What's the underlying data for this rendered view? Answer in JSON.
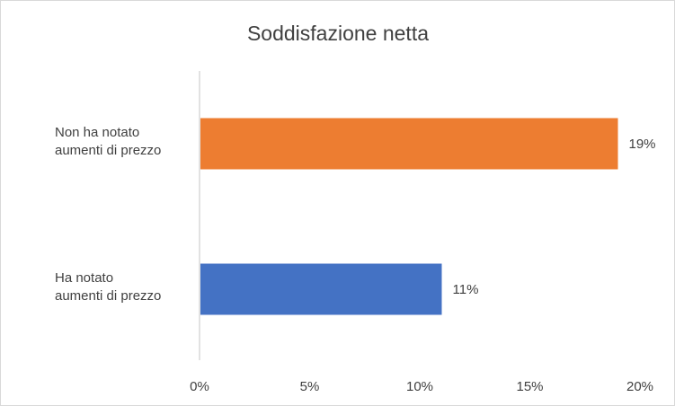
{
  "chart_data": {
    "type": "bar",
    "orientation": "horizontal",
    "title": "Soddisfazione netta",
    "categories": [
      [
        "Non ha notato",
        "aumenti di prezzo"
      ],
      [
        "Ha notato",
        "aumenti di prezzo"
      ]
    ],
    "values": [
      19,
      11
    ],
    "data_labels": [
      "19%",
      "11%"
    ],
    "colors": [
      "#ED7D31",
      "#4472C4"
    ],
    "x_ticks": [
      "0%",
      "5%",
      "10%",
      "15%",
      "20%"
    ],
    "xlim": [
      0,
      20
    ],
    "grid": false,
    "legend": "none"
  }
}
